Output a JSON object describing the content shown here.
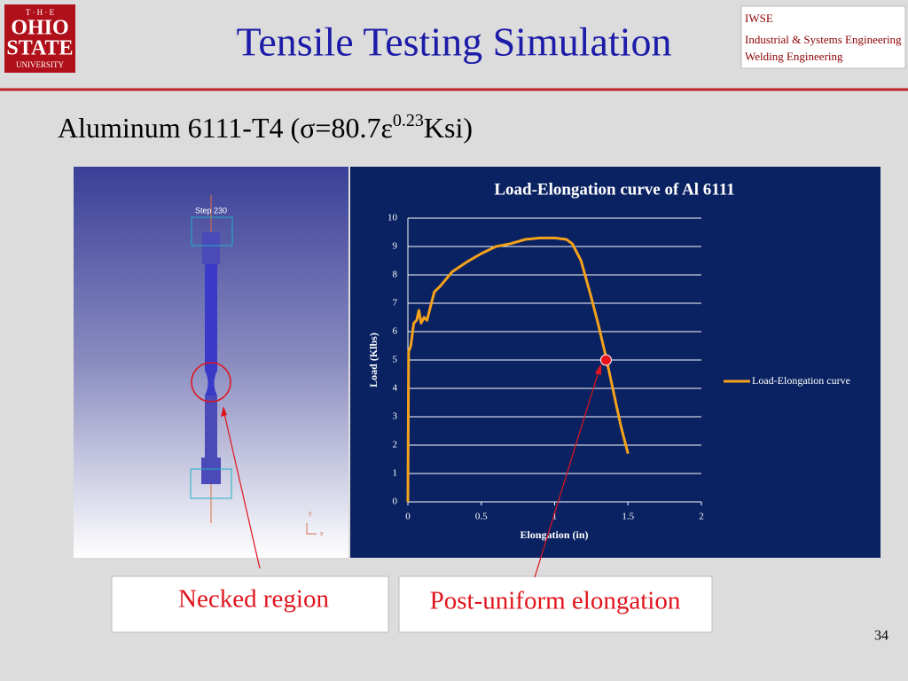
{
  "logo": {
    "lines": [
      "T · H · E",
      "OHIO",
      "STATE",
      "UNIVERSITY"
    ]
  },
  "badge": {
    "lines": [
      "IWSE",
      "Industrial & Systems Engineering",
      "Welding Engineering"
    ]
  },
  "header": {
    "title": "Tensile Testing Simulation"
  },
  "subtitle": {
    "parts": [
      "Aluminum 6111-T4 (σ=80.7ε",
      "0.23",
      "Ksi)"
    ]
  },
  "simulation": {
    "step_label": "Step  230",
    "axis_labels": [
      "y",
      "x"
    ]
  },
  "callouts": [
    "Necked region",
    "Post-uniform elongation"
  ],
  "page_number": 34,
  "chart_data": {
    "type": "line",
    "title": "Load-Elongation curve of Al 6111",
    "x_label": "Elongation (in)",
    "y_label": "Load (Klbs)",
    "x": [
      0,
      0.005,
      0.02,
      0.04,
      0.06,
      0.075,
      0.09,
      0.11,
      0.13,
      0.15,
      0.18,
      0.22,
      0.3,
      0.4,
      0.5,
      0.6,
      0.7,
      0.8,
      0.9,
      1.0,
      1.08,
      1.12,
      1.18,
      1.25,
      1.3,
      1.35,
      1.4,
      1.45,
      1.5
    ],
    "series": [
      {
        "name": "Load-Elongation curve",
        "color": "#f5a21b",
        "values": [
          0,
          5.3,
          5.5,
          6.3,
          6.4,
          6.75,
          6.3,
          6.5,
          6.4,
          6.8,
          7.4,
          7.6,
          8.1,
          8.45,
          8.75,
          9.0,
          9.1,
          9.25,
          9.3,
          9.3,
          9.25,
          9.1,
          8.5,
          7.2,
          6.2,
          5.1,
          3.9,
          2.7,
          1.7
        ]
      }
    ],
    "marker": {
      "x": 1.35,
      "y": 5.0,
      "color": "#e8141c"
    },
    "xlim": [
      0,
      2
    ],
    "xticks": [
      0,
      0.5,
      1,
      1.5,
      2
    ],
    "ylim": [
      0,
      10
    ],
    "yticks": [
      0,
      1,
      2,
      3,
      4,
      5,
      6,
      7,
      8,
      9,
      10
    ],
    "grid": true,
    "legend": "right"
  }
}
